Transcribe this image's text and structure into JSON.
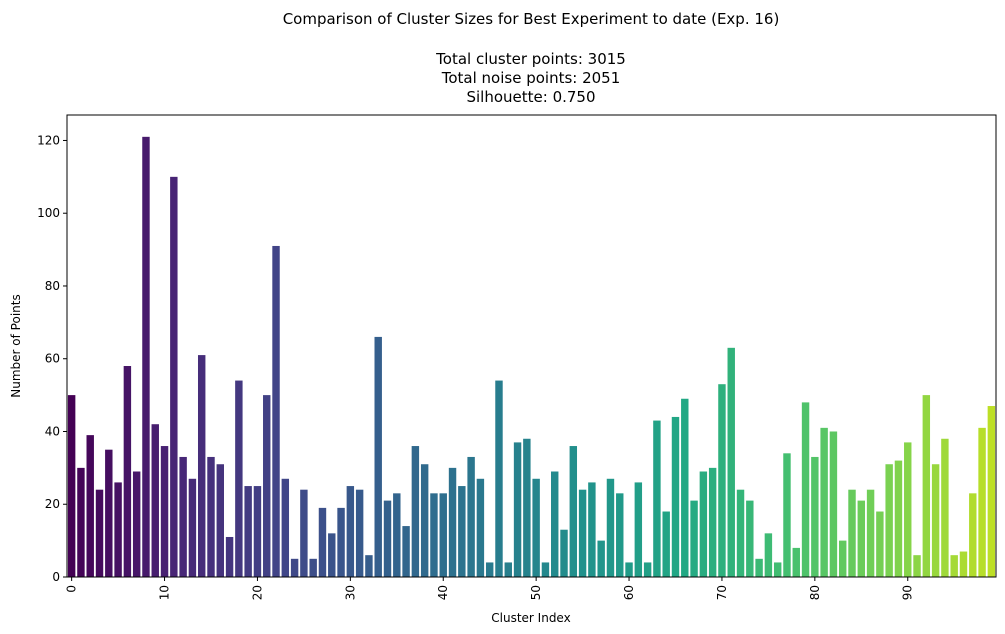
{
  "chart_data": {
    "type": "bar",
    "title_lines": [
      "Comparison of Cluster Sizes for Best Experiment to date (Exp. 16)",
      "Total cluster points: 3015",
      "Total noise points: 2051",
      "Silhouette: 0.750"
    ],
    "xlabel": "Cluster Index",
    "ylabel": "Number of Points",
    "ylim": [
      0,
      127
    ],
    "y_ticks": [
      0,
      20,
      40,
      60,
      80,
      100,
      120
    ],
    "x_tick_labels": [
      "0",
      "10",
      "20",
      "30",
      "40",
      "50",
      "60",
      "70",
      "80",
      "90"
    ],
    "x_tick_indices": [
      0,
      10,
      20,
      30,
      40,
      50,
      60,
      70,
      80,
      90
    ],
    "colormap": "viridis",
    "categories": [
      0,
      1,
      2,
      3,
      4,
      5,
      6,
      7,
      8,
      9,
      10,
      11,
      12,
      13,
      14,
      15,
      16,
      17,
      18,
      19,
      20,
      21,
      22,
      23,
      24,
      25,
      26,
      27,
      28,
      29,
      30,
      31,
      32,
      33,
      34,
      35,
      36,
      37,
      38,
      39,
      40,
      41,
      42,
      43,
      44,
      45,
      46,
      47,
      48,
      49,
      50,
      51,
      52,
      53,
      54,
      55,
      56,
      57,
      58,
      59,
      60,
      61,
      62,
      63,
      64,
      65,
      66,
      67,
      68,
      69,
      70,
      71,
      72,
      73,
      74,
      75,
      76,
      77,
      78,
      79,
      80,
      81,
      82,
      83,
      84,
      85,
      86,
      87,
      88,
      89,
      90,
      91,
      92,
      93,
      94,
      95,
      96,
      97,
      98,
      99
    ],
    "values": [
      50,
      30,
      39,
      24,
      35,
      26,
      58,
      29,
      121,
      42,
      36,
      110,
      33,
      27,
      61,
      33,
      31,
      11,
      54,
      25,
      25,
      50,
      91,
      27,
      5,
      24,
      5,
      19,
      12,
      19,
      25,
      24,
      6,
      66,
      21,
      23,
      14,
      36,
      31,
      23,
      23,
      30,
      25,
      33,
      27,
      4,
      54,
      4,
      37,
      38,
      27,
      4,
      29,
      13,
      36,
      24,
      26,
      10,
      27,
      23,
      4,
      26,
      4,
      43,
      18,
      44,
      49,
      21,
      29,
      30,
      53,
      63,
      24,
      21,
      5,
      12,
      4,
      34,
      8,
      48,
      33,
      41,
      40,
      10,
      24,
      21,
      24,
      18,
      31,
      32,
      37,
      6,
      50,
      31,
      38,
      6,
      7,
      23,
      41,
      47
    ]
  }
}
